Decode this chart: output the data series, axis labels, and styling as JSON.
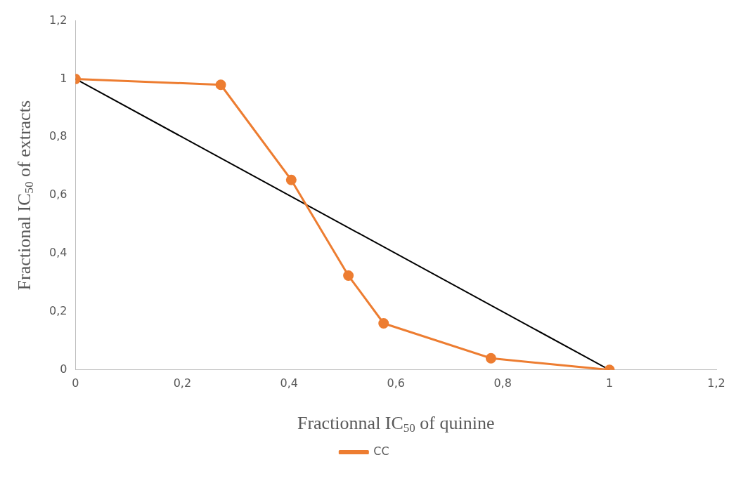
{
  "chart_data": {
    "type": "line",
    "xlabel": "Fractionnal IC$_{50}$ of quinine",
    "ylabel": "Fractional IC$_{50}$ of extracts",
    "xlim": [
      0,
      1.2
    ],
    "ylim": [
      0,
      1.2
    ],
    "xticks": [
      0,
      {
        "value": 0.2,
        "label": "0,2"
      },
      {
        "value": 0.4,
        "label": "0,4"
      },
      {
        "value": 0.6,
        "label": "0,6"
      },
      {
        "value": 0.8,
        "label": "0,8"
      },
      1,
      {
        "value": 1.2,
        "label": "1,2"
      }
    ],
    "yticks": [
      0,
      {
        "value": 0.2,
        "label": "0,2"
      },
      {
        "value": 0.4,
        "label": "0,4"
      },
      {
        "value": 0.6,
        "label": "0,6"
      },
      {
        "value": 0.8,
        "label": "0,8"
      },
      1,
      {
        "value": 1.2,
        "label": "1,2"
      }
    ],
    "grid": false,
    "legend": "bottom",
    "marker": "circle",
    "line_style": "solid",
    "series": [
      {
        "name": "CC",
        "color": "#ed7d31",
        "x": [
          0,
          0.272,
          0.404,
          0.511,
          0.577,
          0.778,
          1
        ],
        "values": [
          1,
          0.98,
          0.653,
          0.324,
          0.16,
          0.04,
          0
        ]
      },
      {
        "type": "line",
        "color": "#000000",
        "marker": "none",
        "x": [
          0,
          1
        ],
        "values": [
          1,
          0
        ]
      }
    ]
  }
}
